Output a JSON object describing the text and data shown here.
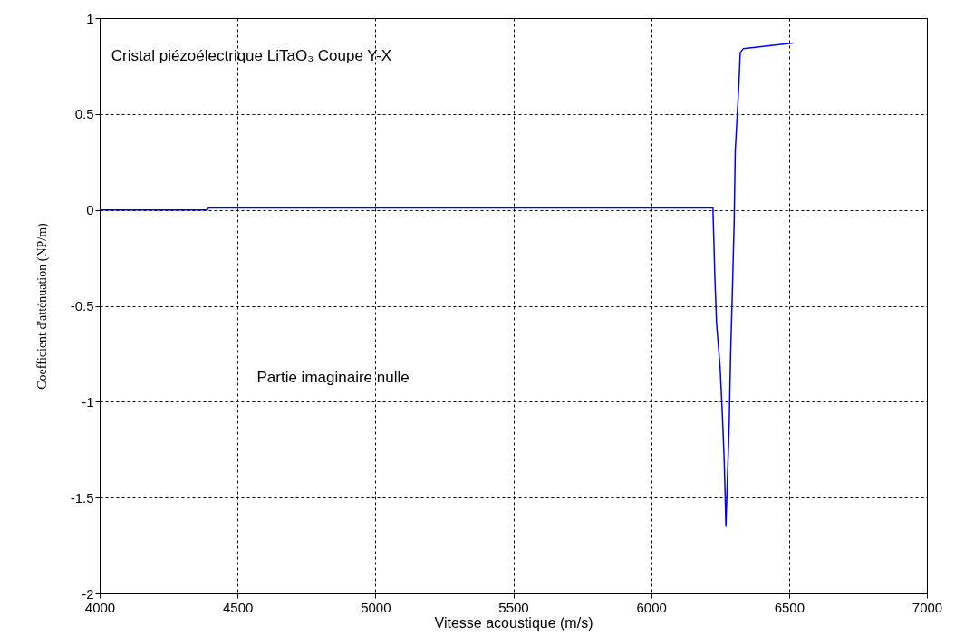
{
  "chart_data": {
    "type": "line",
    "xlabel": "Vitesse acoustique (m/s)",
    "ylabel": "Coefficient d'atténuation (NP/m)",
    "annotations": [
      "Cristal piézoélectrique LiTaO₃ Coupe Y-X",
      "Partie imaginaire nulle"
    ],
    "x": [
      4000,
      4390,
      4395,
      6224,
      6231,
      6237,
      6250,
      6258,
      6265,
      6269,
      6271,
      6275,
      6283,
      6288,
      6295,
      6301,
      6305,
      6318,
      6323,
      6334,
      6515
    ],
    "series": [
      {
        "color": "#0000ff",
        "values": [
          0,
          0,
          0.01,
          0.01,
          -0.35,
          -0.59,
          -0.82,
          -1.06,
          -1.31,
          -1.53,
          -1.65,
          -1.47,
          -1.12,
          -0.76,
          -0.4,
          -0.06,
          0.31,
          0.65,
          0.82,
          0.84,
          0.87
        ]
      }
    ],
    "xlim": [
      4000,
      7000
    ],
    "xticks": [
      4000,
      4500,
      5000,
      5500,
      6000,
      6500,
      7000
    ],
    "ylim": [
      -2,
      1
    ],
    "yticks": [
      -2,
      -1.5,
      -1,
      -0.5,
      0,
      0.5,
      1
    ],
    "grid": true,
    "line_style": "solid",
    "marker": "none"
  }
}
